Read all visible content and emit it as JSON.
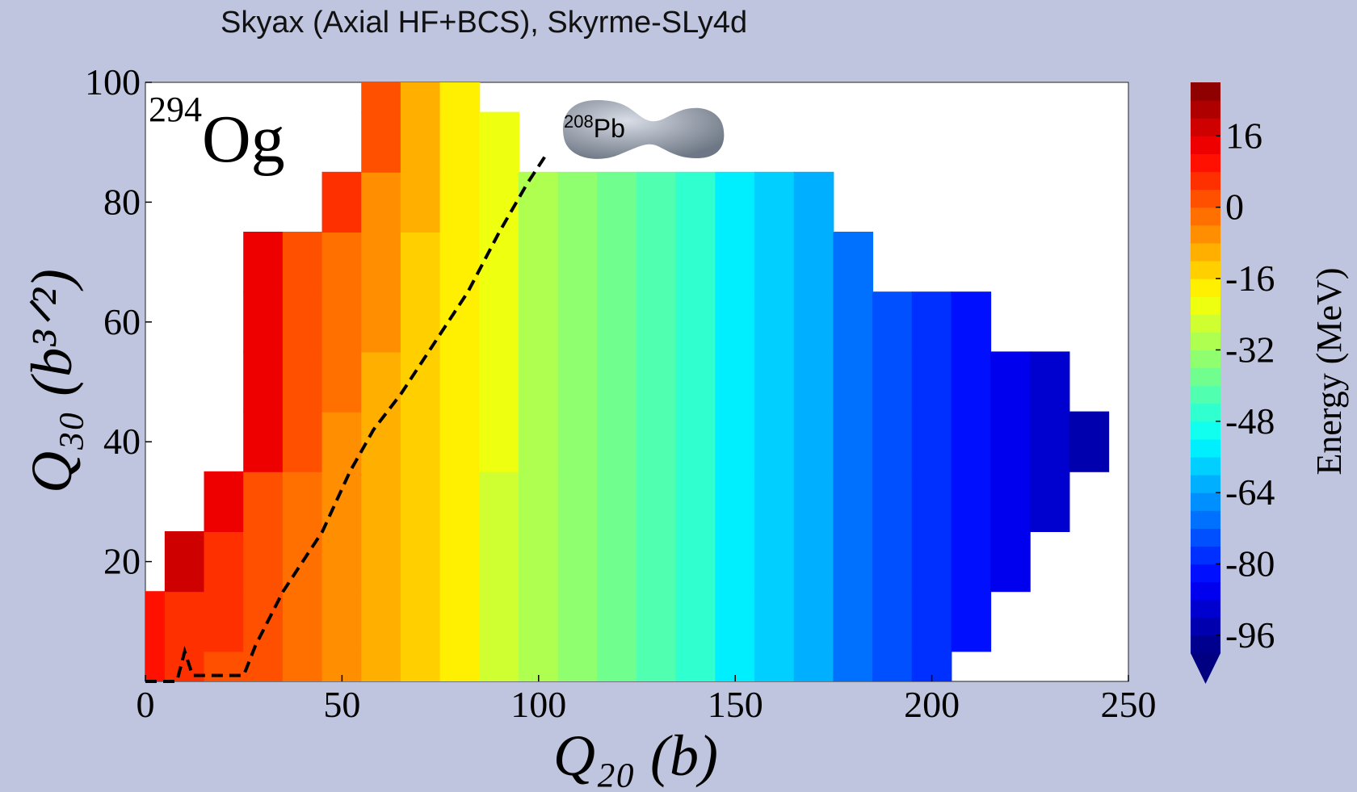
{
  "chart_data": {
    "type": "contour",
    "title": "Skyax (Axial HF+BCS), Skyrme-SLy4d",
    "xlabel": "Q₂₀ (b)",
    "ylabel": "Q₃₀ (b³ᐟ²)",
    "colorbar_label": "Energy (MeV)",
    "colorscale": "jet",
    "xlim": [
      0,
      250
    ],
    "xticks": [
      0,
      50,
      100,
      150,
      200,
      250
    ],
    "ylim": [
      0,
      100
    ],
    "yticks": [
      20,
      40,
      60,
      80,
      100
    ],
    "zlim": [
      -100,
      28
    ],
    "zticks": [
      -96,
      -80,
      -64,
      -48,
      -32,
      -16,
      0,
      16
    ],
    "level_step": 4,
    "annotations": [
      {
        "superscript": "294",
        "text": "Og"
      },
      {
        "superscript": "208",
        "text": "Pb"
      }
    ],
    "x": [
      0,
      10,
      20,
      30,
      40,
      50,
      60,
      70,
      80,
      90,
      100,
      110,
      120,
      130,
      140,
      150,
      160,
      170,
      180,
      190,
      200,
      210,
      220,
      230,
      240
    ],
    "y": [
      0,
      10,
      20,
      30,
      40,
      50,
      60,
      70,
      80,
      90,
      100
    ],
    "z": [
      [
        8,
        6,
        3,
        0,
        -4,
        -8,
        -12,
        -16,
        -20,
        -25,
        -29,
        -33,
        -38,
        -43,
        -48,
        -54,
        -59,
        -64,
        -69,
        -74,
        -79,
        null,
        null,
        null,
        null
      ],
      [
        10,
        7,
        4,
        1,
        -3,
        -7,
        -11,
        -16,
        -20,
        -25,
        -29,
        -33,
        -38,
        -43,
        -48,
        -54,
        -59,
        -64,
        -69,
        -74,
        -79,
        -84,
        null,
        null,
        null
      ],
      [
        null,
        17,
        5,
        2,
        -2,
        -6,
        -11,
        -15,
        -19,
        -25,
        -29,
        -33,
        -38,
        -43,
        -48,
        -54,
        -59,
        -64,
        -69,
        -74,
        -79,
        -84,
        -88,
        null,
        null
      ],
      [
        null,
        null,
        15,
        3,
        -1,
        -6,
        -10,
        -15,
        -19,
        -25,
        -29,
        -33,
        -38,
        -43,
        -48,
        -54,
        -59,
        -64,
        -69,
        -74,
        -79,
        -84,
        -88,
        -92,
        null
      ],
      [
        null,
        null,
        null,
        12,
        0,
        -5,
        -10,
        -14,
        -19,
        -24,
        -29,
        -33,
        -38,
        -43,
        -48,
        -54,
        -59,
        -64,
        -69,
        -74,
        -79,
        -84,
        -88,
        -92,
        -95
      ],
      [
        null,
        null,
        null,
        13,
        1,
        -4,
        -9,
        -14,
        -18,
        -24,
        -29,
        -33,
        -38,
        -43,
        -48,
        -54,
        -59,
        -64,
        -69,
        -74,
        -79,
        -84,
        -88,
        -92,
        null
      ],
      [
        null,
        null,
        null,
        14,
        1,
        -3,
        -8,
        -13,
        -18,
        -24,
        -29,
        -33,
        -38,
        -43,
        -48,
        -54,
        -59,
        -64,
        -69,
        -74,
        -79,
        -84,
        null,
        null,
        null
      ],
      [
        null,
        null,
        null,
        15,
        2,
        -3,
        -8,
        -13,
        -18,
        -24,
        -29,
        -33,
        -38,
        -43,
        -48,
        -54,
        -59,
        -64,
        -69,
        null,
        null,
        null,
        null,
        null,
        null
      ],
      [
        null,
        null,
        null,
        null,
        null,
        6,
        -7,
        -12,
        -18,
        -24,
        -29,
        -33,
        -38,
        -43,
        -48,
        -54,
        -59,
        -64,
        null,
        null,
        null,
        null,
        null,
        null,
        null
      ],
      [
        null,
        null,
        null,
        null,
        null,
        null,
        1,
        -12,
        -17,
        -24,
        null,
        null,
        null,
        null,
        null,
        null,
        null,
        null,
        null,
        null,
        null,
        null,
        null,
        null,
        null
      ],
      [
        null,
        null,
        null,
        null,
        null,
        null,
        2,
        -11,
        -17,
        null,
        null,
        null,
        null,
        null,
        null,
        null,
        null,
        null,
        null,
        null,
        null,
        null,
        null,
        null,
        null
      ]
    ],
    "fission_path": {
      "x": [
        0,
        8,
        10,
        12,
        25,
        28,
        35,
        40,
        45,
        52,
        58,
        65,
        75,
        82,
        90,
        97,
        102
      ],
      "y": [
        0,
        0,
        5,
        1,
        1,
        6,
        15,
        20,
        25,
        35,
        42,
        48,
        58,
        65,
        75,
        83,
        88
      ]
    }
  }
}
